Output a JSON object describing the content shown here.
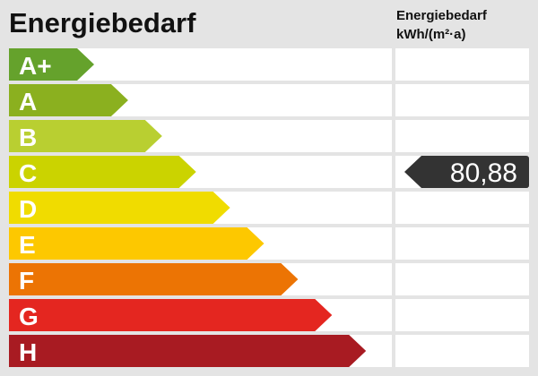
{
  "title": "Energiebedarf",
  "column_header": {
    "line1": "Energiebedarf",
    "line2": "kWh/(m²·a)"
  },
  "classes": [
    {
      "label": "A+",
      "color": "#65a22c"
    },
    {
      "label": "A",
      "color": "#8bb01f"
    },
    {
      "label": "B",
      "color": "#b9cf31"
    },
    {
      "label": "C",
      "color": "#cbd300"
    },
    {
      "label": "D",
      "color": "#f0dc00"
    },
    {
      "label": "E",
      "color": "#fdc800"
    },
    {
      "label": "F",
      "color": "#ec7404"
    },
    {
      "label": "G",
      "color": "#e42620"
    },
    {
      "label": "H",
      "color": "#a81b22"
    }
  ],
  "indicator": {
    "value": "80,88",
    "class": "C",
    "color": "#333333"
  }
}
